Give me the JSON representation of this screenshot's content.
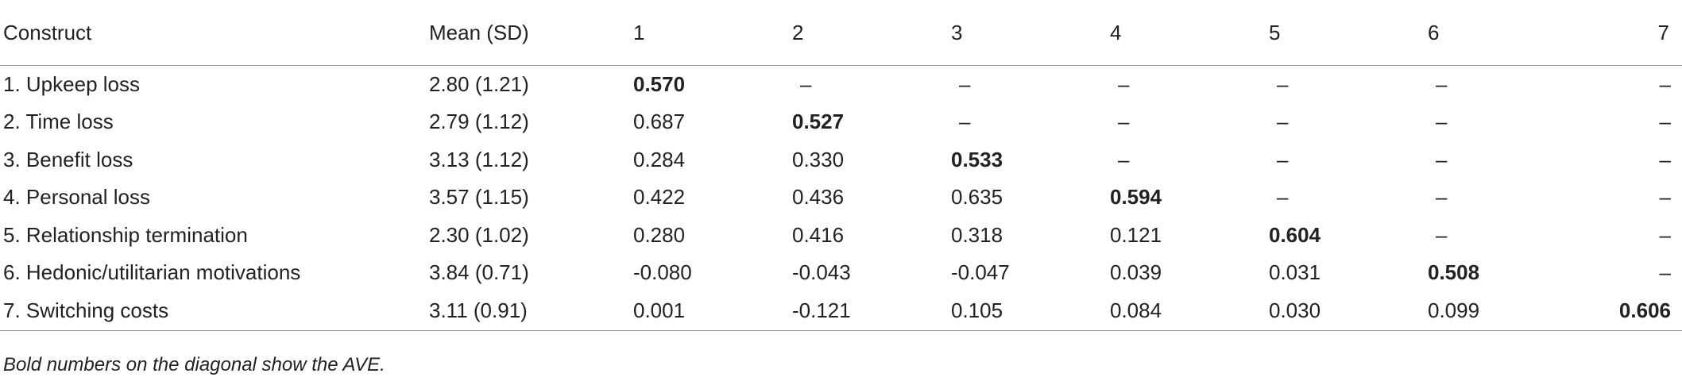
{
  "table": {
    "headers": [
      "Construct",
      "Mean (SD)",
      "1",
      "2",
      "3",
      "4",
      "5",
      "6",
      "7"
    ],
    "rows": [
      {
        "construct": "1. Upkeep loss",
        "mean_sd": "2.80 (1.21)",
        "values": [
          "0.570",
          "–",
          "–",
          "–",
          "–",
          "–",
          "–"
        ]
      },
      {
        "construct": "2. Time loss",
        "mean_sd": "2.79 (1.12)",
        "values": [
          "0.687",
          "0.527",
          "–",
          "–",
          "–",
          "–",
          "–"
        ]
      },
      {
        "construct": "3. Benefit loss",
        "mean_sd": "3.13 (1.12)",
        "values": [
          "0.284",
          "0.330",
          "0.533",
          "–",
          "–",
          "–",
          "–"
        ]
      },
      {
        "construct": "4. Personal loss",
        "mean_sd": "3.57 (1.15)",
        "values": [
          "0.422",
          "0.436",
          "0.635",
          "0.594",
          "–",
          "–",
          "–"
        ]
      },
      {
        "construct": "5. Relationship termination",
        "mean_sd": "2.30 (1.02)",
        "values": [
          "0.280",
          "0.416",
          "0.318",
          "0.121",
          "0.604",
          "–",
          "–"
        ]
      },
      {
        "construct": "6. Hedonic/utilitarian motivations",
        "mean_sd": "3.84 (0.71)",
        "values": [
          "-0.080",
          "-0.043",
          "-0.047",
          "0.039",
          "0.031",
          "0.508",
          "–"
        ]
      },
      {
        "construct": "7. Switching costs",
        "mean_sd": "3.11 (0.91)",
        "values": [
          "0.001",
          "-0.121",
          "0.105",
          "0.084",
          "0.030",
          "0.099",
          "0.606"
        ]
      }
    ]
  },
  "footnote": "Bold numbers on the diagonal show the AVE."
}
